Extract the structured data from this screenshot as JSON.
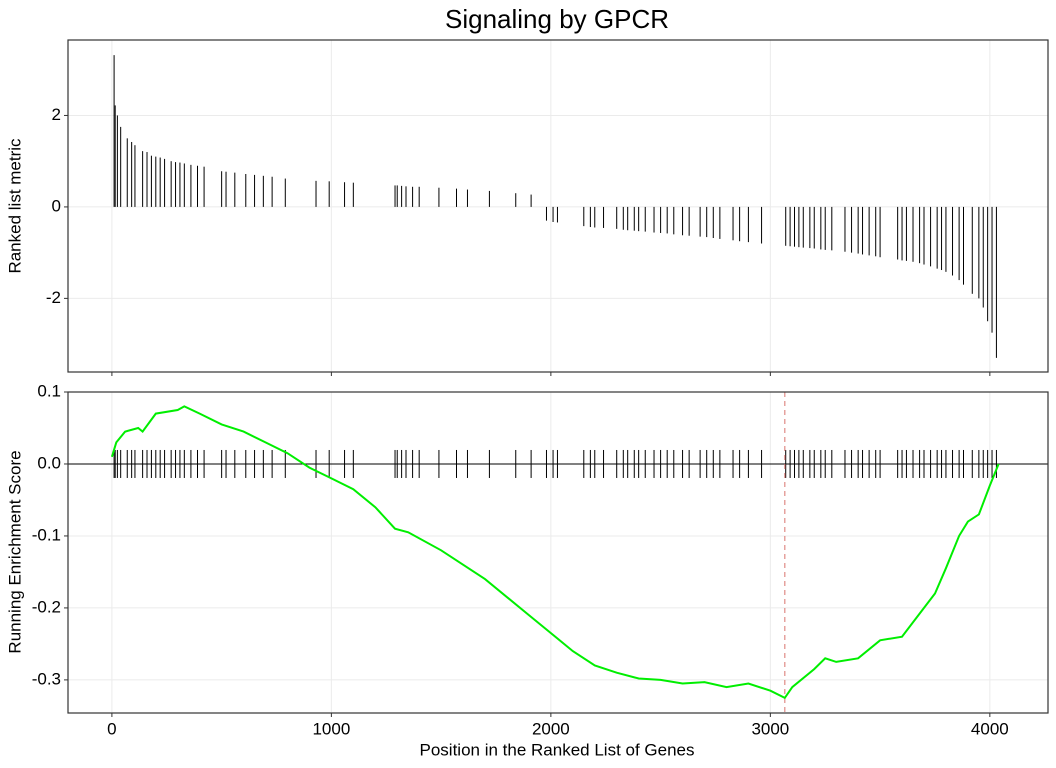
{
  "chart_data": [
    {
      "type": "bar",
      "title": "Signaling by GPCR",
      "ylabel": "Ranked list metric",
      "color": "#000000",
      "x": [
        10,
        15,
        25,
        40,
        70,
        90,
        105,
        140,
        160,
        180,
        200,
        220,
        240,
        270,
        290,
        310,
        330,
        360,
        390,
        420,
        500,
        520,
        560,
        610,
        650,
        690,
        730,
        790,
        930,
        990,
        1060,
        1100,
        1290,
        1300,
        1320,
        1340,
        1370,
        1400,
        1490,
        1570,
        1620,
        1720,
        1840,
        1910,
        1980,
        2010,
        2030,
        2150,
        2180,
        2200,
        2240,
        2300,
        2330,
        2350,
        2380,
        2400,
        2430,
        2470,
        2500,
        2530,
        2560,
        2600,
        2630,
        2680,
        2710,
        2740,
        2770,
        2830,
        2860,
        2900,
        2960,
        3070,
        3090,
        3110,
        3130,
        3150,
        3180,
        3200,
        3230,
        3250,
        3280,
        3340,
        3370,
        3400,
        3420,
        3450,
        3480,
        3500,
        3580,
        3600,
        3620,
        3650,
        3680,
        3700,
        3730,
        3760,
        3780,
        3800,
        3830,
        3860,
        3880,
        3920,
        3950,
        3970,
        3990,
        4010,
        4030
      ],
      "values": [
        3.32,
        2.22,
        2.0,
        1.75,
        1.5,
        1.42,
        1.35,
        1.22,
        1.2,
        1.12,
        1.1,
        1.08,
        1.05,
        1.0,
        0.98,
        0.97,
        0.95,
        0.92,
        0.9,
        0.88,
        0.78,
        0.77,
        0.75,
        0.72,
        0.7,
        0.68,
        0.66,
        0.62,
        0.57,
        0.56,
        0.54,
        0.53,
        0.47,
        0.47,
        0.46,
        0.45,
        0.44,
        0.44,
        0.42,
        0.4,
        0.38,
        0.35,
        0.3,
        0.27,
        -0.3,
        -0.33,
        -0.34,
        -0.42,
        -0.44,
        -0.45,
        -0.46,
        -0.48,
        -0.5,
        -0.51,
        -0.52,
        -0.53,
        -0.54,
        -0.56,
        -0.57,
        -0.58,
        -0.6,
        -0.62,
        -0.63,
        -0.65,
        -0.66,
        -0.68,
        -0.7,
        -0.73,
        -0.75,
        -0.77,
        -0.8,
        -0.85,
        -0.86,
        -0.87,
        -0.88,
        -0.89,
        -0.9,
        -0.91,
        -0.93,
        -0.94,
        -0.95,
        -0.98,
        -1.0,
        -1.02,
        -1.04,
        -1.06,
        -1.08,
        -1.1,
        -1.15,
        -1.17,
        -1.18,
        -1.2,
        -1.23,
        -1.26,
        -1.3,
        -1.35,
        -1.38,
        -1.42,
        -1.5,
        -1.6,
        -1.7,
        -1.9,
        -2.0,
        -2.2,
        -2.5,
        -2.75,
        -3.3
      ],
      "xlim": [
        -200,
        4265
      ],
      "xticks": [
        0,
        1000,
        2000,
        3000,
        4000
      ],
      "ylim": [
        -3.61,
        3.65
      ],
      "yticks": [
        -2,
        0,
        2
      ],
      "grid": true
    },
    {
      "type": "line",
      "xlabel": "Position in the Ranked List of Genes",
      "ylabel": "Running Enrichment Score",
      "color": "#00ee00",
      "x": [
        0,
        20,
        60,
        120,
        140,
        200,
        300,
        330,
        400,
        500,
        600,
        700,
        800,
        900,
        1000,
        1100,
        1200,
        1290,
        1350,
        1500,
        1700,
        1900,
        2000,
        2100,
        2200,
        2300,
        2400,
        2500,
        2600,
        2700,
        2800,
        2900,
        3000,
        3066,
        3100,
        3200,
        3250,
        3300,
        3400,
        3500,
        3600,
        3700,
        3750,
        3800,
        3860,
        3900,
        3950,
        4000,
        4040
      ],
      "values": [
        0.01,
        0.03,
        0.045,
        0.05,
        0.045,
        0.07,
        0.075,
        0.08,
        0.07,
        0.055,
        0.045,
        0.03,
        0.015,
        -0.005,
        -0.02,
        -0.035,
        -0.06,
        -0.09,
        -0.095,
        -0.12,
        -0.16,
        -0.21,
        -0.235,
        -0.26,
        -0.28,
        -0.29,
        -0.298,
        -0.3,
        -0.305,
        -0.303,
        -0.31,
        -0.305,
        -0.315,
        -0.325,
        -0.31,
        -0.285,
        -0.27,
        -0.275,
        -0.27,
        -0.245,
        -0.24,
        -0.2,
        -0.18,
        -0.145,
        -0.1,
        -0.08,
        -0.07,
        -0.03,
        0.0
      ],
      "vline": 3066,
      "vline_color": "#d9736e",
      "xlim": [
        -200,
        4265
      ],
      "xticks": [
        0,
        1000,
        2000,
        3000,
        4000
      ],
      "ylim": [
        -0.346,
        0.1
      ],
      "yticks": [
        -0.3,
        -0.2,
        -0.1,
        {
          "value": 0,
          "label": "0.0"
        },
        0.1
      ],
      "grid": true
    }
  ]
}
